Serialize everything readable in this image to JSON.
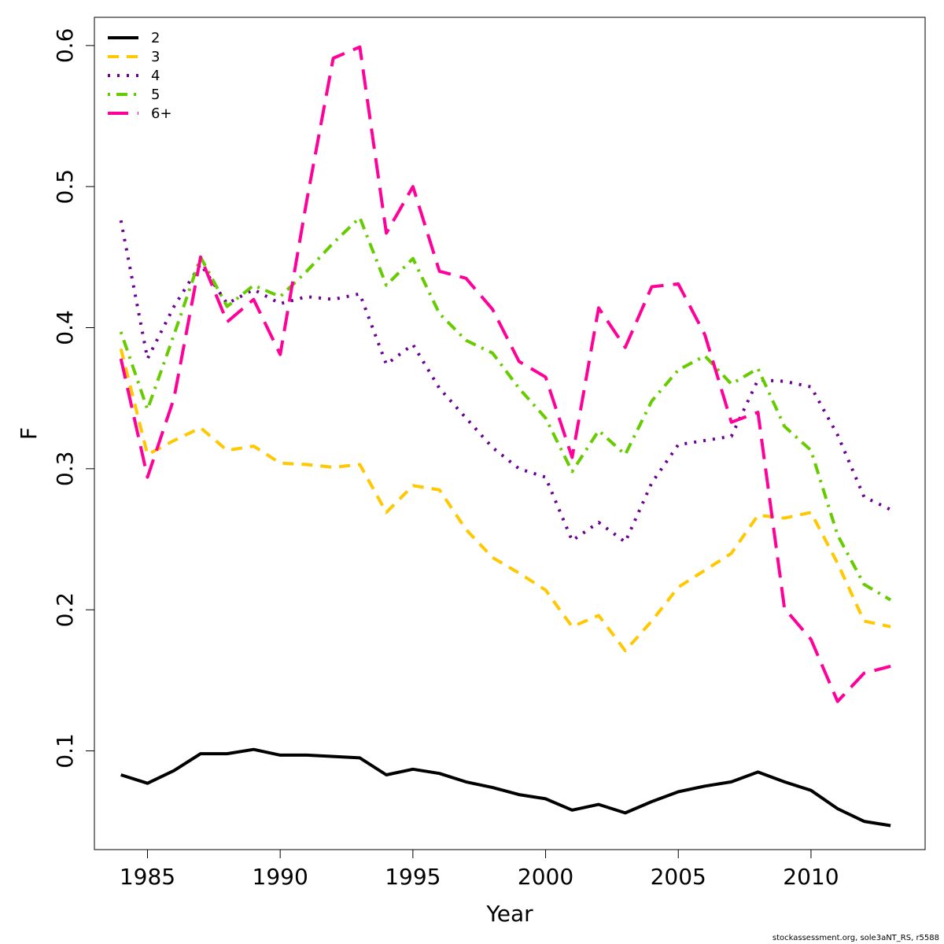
{
  "chart_data": {
    "type": "line",
    "title": "",
    "xlabel": "Year",
    "ylabel": "F",
    "xlim": [
      1983,
      2014.3
    ],
    "ylim": [
      0.03,
      0.62
    ],
    "x_ticks": [
      1985,
      1990,
      1995,
      2000,
      2005,
      2010
    ],
    "y_ticks": [
      0.1,
      0.2,
      0.3,
      0.4,
      0.5,
      0.6
    ],
    "y_tick_labels": [
      "0.1",
      "0.2",
      "0.3",
      "0.4",
      "0.5",
      "0.6"
    ],
    "grid": false,
    "legend_position": "top-left",
    "x": [
      1984,
      1985,
      1986,
      1987,
      1988,
      1989,
      1990,
      1991,
      1992,
      1993,
      1994,
      1995,
      1996,
      1997,
      1998,
      1999,
      2000,
      2001,
      2002,
      2003,
      2004,
      2005,
      2006,
      2007,
      2008,
      2009,
      2010,
      2011,
      2012,
      2013
    ],
    "series": [
      {
        "name": "2",
        "color": "#000000",
        "dash": "solid",
        "values": [
          0.083,
          0.077,
          0.086,
          0.098,
          0.098,
          0.101,
          0.097,
          0.097,
          0.096,
          0.095,
          0.083,
          0.087,
          0.084,
          0.078,
          0.074,
          0.069,
          0.066,
          0.058,
          0.062,
          0.056,
          0.064,
          0.071,
          0.075,
          0.078,
          0.085,
          0.078,
          0.072,
          0.059,
          0.05,
          0.047
        ]
      },
      {
        "name": "3",
        "color": "#ffc800",
        "dash": "dashed",
        "values": [
          0.385,
          0.31,
          0.32,
          0.329,
          0.313,
          0.316,
          0.304,
          0.303,
          0.301,
          0.303,
          0.269,
          0.288,
          0.285,
          0.257,
          0.237,
          0.226,
          0.214,
          0.188,
          0.196,
          0.171,
          0.192,
          0.216,
          0.228,
          0.24,
          0.267,
          0.265,
          0.269,
          0.233,
          0.192,
          0.188
        ]
      },
      {
        "name": "4",
        "color": "#6a0094",
        "dash": "dotted",
        "values": [
          0.476,
          0.378,
          0.415,
          0.445,
          0.417,
          0.427,
          0.417,
          0.422,
          0.42,
          0.424,
          0.374,
          0.388,
          0.357,
          0.336,
          0.315,
          0.3,
          0.294,
          0.249,
          0.262,
          0.248,
          0.29,
          0.317,
          0.32,
          0.323,
          0.363,
          0.362,
          0.358,
          0.324,
          0.28,
          0.271
        ]
      },
      {
        "name": "5",
        "color": "#66cc00",
        "dash": "dotdash",
        "values": [
          0.397,
          0.342,
          0.395,
          0.45,
          0.415,
          0.43,
          0.422,
          0.44,
          0.46,
          0.478,
          0.43,
          0.449,
          0.41,
          0.391,
          0.382,
          0.357,
          0.336,
          0.298,
          0.327,
          0.31,
          0.348,
          0.37,
          0.38,
          0.36,
          0.371,
          0.33,
          0.313,
          0.253,
          0.218,
          0.207
        ]
      },
      {
        "name": "6+",
        "color": "#ff0099",
        "dash": "longdash",
        "values": [
          0.378,
          0.294,
          0.35,
          0.45,
          0.404,
          0.42,
          0.381,
          0.49,
          0.591,
          0.599,
          0.467,
          0.5,
          0.44,
          0.435,
          0.413,
          0.376,
          0.365,
          0.308,
          0.414,
          0.386,
          0.429,
          0.431,
          0.395,
          0.333,
          0.34,
          0.201,
          0.179,
          0.135,
          0.155,
          0.16
        ]
      }
    ]
  },
  "footer": {
    "credit": "stockassessment.org, sole3aNT_RS, r5588"
  }
}
